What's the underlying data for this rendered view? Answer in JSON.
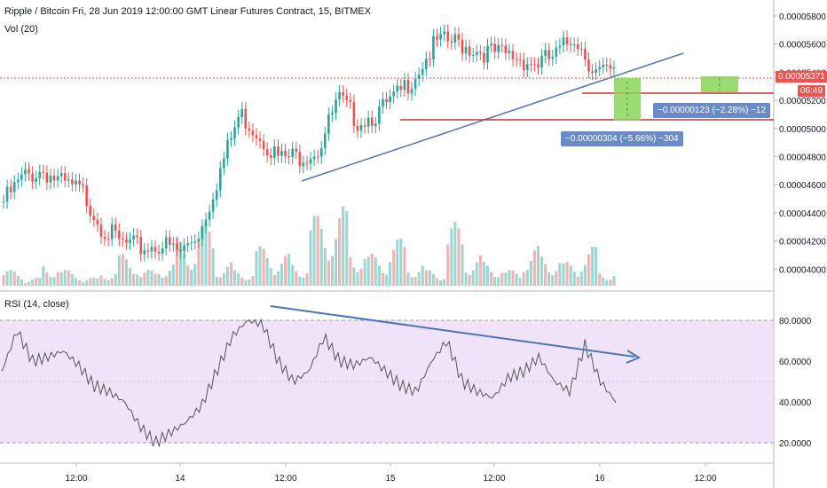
{
  "header": {
    "symbol_title": "Ripple / Bitcoin Fri, 28 Jun 2019 12:00:00 GMT Linear Futures Contract, 15, BITMEX",
    "volume_label": "Vol (20)",
    "rsi_label": "RSI (14, close)"
  },
  "price_axis": {
    "ticks": [
      "0.00005800",
      "0.00005600",
      "0.00005400",
      "0.00005200",
      "0.00005000",
      "0.00004800",
      "0.00004600",
      "0.00004400",
      "0.00004200",
      "0.00004000"
    ],
    "last_price": "0.00005371",
    "countdown": "06:49"
  },
  "rsi_axis": {
    "ticks": [
      "80.0000",
      "60.0000",
      "40.0000",
      "20.0000"
    ]
  },
  "time_axis": {
    "ticks": [
      "12:00",
      "14",
      "12:00",
      "15",
      "12:00",
      "16",
      "12:00"
    ]
  },
  "annotations": {
    "short_box_label": "−0.00000123 (−2.28%) −12",
    "long_box_label": "−0.00000304 (−5.66%) −304"
  },
  "colors": {
    "up": "#26a69a",
    "down": "#ef5350",
    "trend": "#4a76b8",
    "rsi_line": "#555555",
    "rsi_band": "#e9d5f7"
  },
  "chart_data": [
    {
      "type": "candlestick",
      "title": "Ripple / Bitcoin",
      "timeframe": "15",
      "exchange": "BITMEX",
      "y_range": [
        3.9e-05,
        5.9e-05
      ],
      "x": [
        "13 12:00",
        "14",
        "14 12:00",
        "15",
        "15 12:00",
        "16",
        "16 12:00"
      ],
      "close_path": [
        4.48e-05,
        4.65e-05,
        4.7e-05,
        4.6e-05,
        4.55e-05,
        4.3e-05,
        4.18e-05,
        4.15e-05,
        4.18e-05,
        4.12e-05,
        4.28e-05,
        4.7e-05,
        5.1e-05,
        4.95e-05,
        4.78e-05,
        4.8e-05,
        4.85e-05,
        5.2e-05,
        5.05e-05,
        5.1e-05,
        5.22e-05,
        5.4e-05,
        5.6e-05,
        5.6e-05,
        5.55e-05,
        5.52e-05,
        5.5e-05,
        5.45e-05,
        5.5e-05,
        5.65e-05,
        5.4e-05,
        5.37e-05
      ],
      "last_price": 5.371e-05,
      "horizontal_levels": [
        5.225e-05,
        5.055e-05
      ],
      "trendline": {
        "from": [
          "14 12:00",
          4.66e-05
        ],
        "to": [
          "16 12:00",
          5.52e-05
        ]
      }
    },
    {
      "type": "bar",
      "title": "Vol (20)",
      "values": [
        2,
        1,
        3,
        2,
        1,
        2,
        4,
        2,
        3,
        6,
        8,
        3,
        2,
        5,
        4,
        3,
        9,
        10,
        5,
        4,
        6,
        3,
        2,
        8,
        4,
        3,
        2,
        5,
        4,
        3,
        5,
        2
      ]
    },
    {
      "type": "line",
      "title": "RSI (14, close)",
      "y_range": [
        10,
        90
      ],
      "overbought": 80,
      "oversold": 20,
      "values": [
        55,
        75,
        60,
        62,
        65,
        58,
        48,
        45,
        40,
        28,
        20,
        25,
        30,
        38,
        55,
        72,
        80,
        78,
        60,
        50,
        55,
        72,
        60,
        58,
        62,
        55,
        48,
        45,
        60,
        70,
        50,
        45,
        42,
        52,
        55,
        62,
        50,
        45,
        68,
        50,
        40
      ]
    }
  ]
}
